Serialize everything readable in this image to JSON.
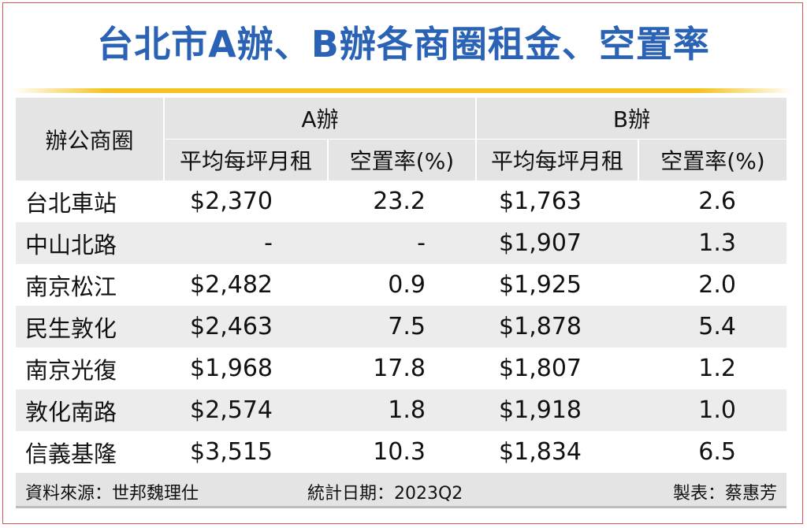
{
  "title": "台北市A辦、B辦各商圈租金、空置率",
  "header": {
    "area": "辦公商圈",
    "group_a": "A辦",
    "group_b": "B辦",
    "rent_a": "平均每坪月租",
    "vacancy_a": "空置率(%)",
    "rent_b": "平均每坪月租",
    "vacancy_b": "空置率(%)"
  },
  "rows": [
    {
      "area": "台北車站",
      "rent_a": "$2,370",
      "vacancy_a": "23.2",
      "rent_b": "$1,763",
      "vacancy_b": "2.6"
    },
    {
      "area": "中山北路",
      "rent_a": "-",
      "vacancy_a": "-",
      "rent_b": "$1,907",
      "vacancy_b": "1.3"
    },
    {
      "area": "南京松江",
      "rent_a": "$2,482",
      "vacancy_a": "0.9",
      "rent_b": "$1,925",
      "vacancy_b": "2.0"
    },
    {
      "area": "民生敦化",
      "rent_a": "$2,463",
      "vacancy_a": "7.5",
      "rent_b": "$1,878",
      "vacancy_b": "5.4"
    },
    {
      "area": "南京光復",
      "rent_a": "$1,968",
      "vacancy_a": "17.8",
      "rent_b": "$1,807",
      "vacancy_b": "1.2"
    },
    {
      "area": "敦化南路",
      "rent_a": "$2,574",
      "vacancy_a": "1.8",
      "rent_b": "$1,918",
      "vacancy_b": "1.0"
    },
    {
      "area": "信義基隆",
      "rent_a": "$3,515",
      "vacancy_a": "10.3",
      "rent_b": "$1,834",
      "vacancy_b": "6.5"
    }
  ],
  "footer": {
    "source": "資料來源：世邦魏理仕",
    "date": "統計日期：2023Q2",
    "maker": "製表：蔡惠芳"
  },
  "colors": {
    "title": "#2a63b5",
    "accent_bar": "#f5c21f",
    "header_bg": "#e4e4e4",
    "shade_row": "#ececec",
    "frame": "#d9534f"
  }
}
